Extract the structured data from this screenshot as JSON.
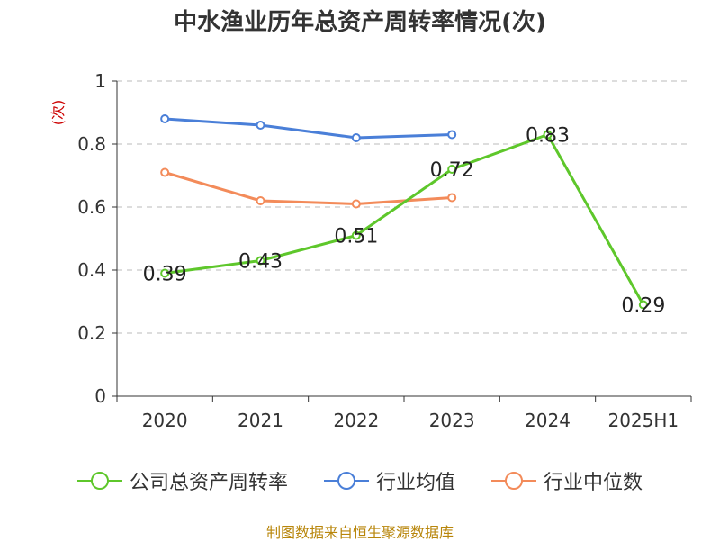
{
  "title": "中水渔业历年总资产周转率情况(次)",
  "source": "制图数据来自恒生聚源数据库",
  "chart_data": {
    "type": "line",
    "title": "中水渔业历年总资产周转率情况(次)",
    "ylabel": "(次)",
    "categories": [
      "2020",
      "2021",
      "2022",
      "2023",
      "2024",
      "2025H1"
    ],
    "y_ticks": [
      "0",
      "0.2",
      "0.4",
      "0.6",
      "0.8",
      "1"
    ],
    "ylim": [
      0,
      1
    ],
    "grid": true,
    "legend_position": "bottom",
    "series": [
      {
        "name": "公司总资产周转率",
        "color": "#5ec72b",
        "labels": true,
        "values": [
          0.39,
          0.43,
          0.51,
          0.72,
          0.83,
          0.29
        ]
      },
      {
        "name": "行业均值",
        "color": "#4a7fd8",
        "labels": false,
        "values": [
          0.88,
          0.86,
          0.82,
          0.83,
          null,
          null
        ]
      },
      {
        "name": "行业中位数",
        "color": "#f38b5a",
        "labels": false,
        "values": [
          0.71,
          0.62,
          0.61,
          0.63,
          null,
          null
        ]
      }
    ]
  }
}
